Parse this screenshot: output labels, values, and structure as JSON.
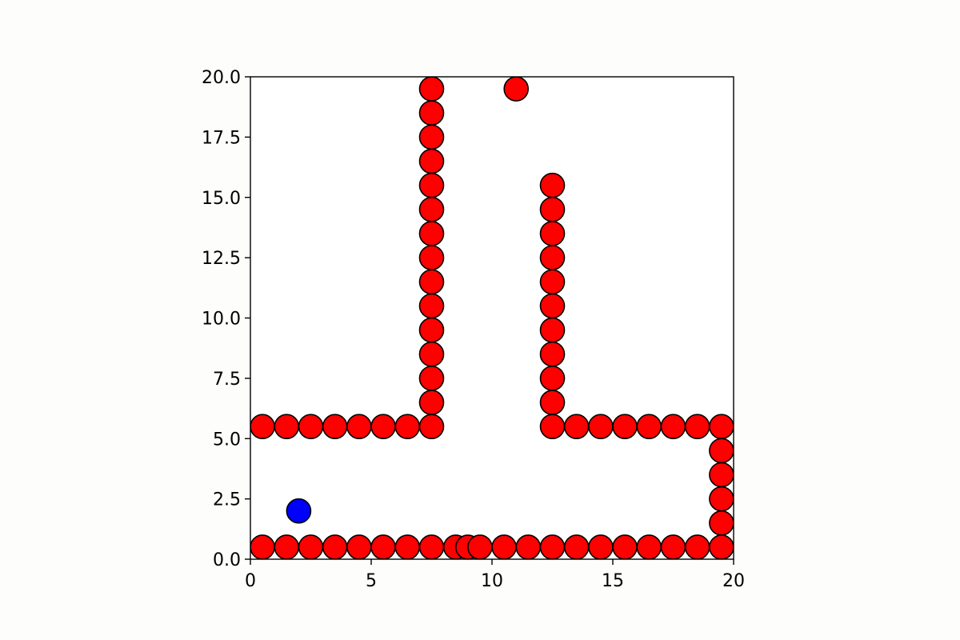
{
  "chart_data": {
    "type": "scatter",
    "title": "",
    "xlabel": "",
    "ylabel": "",
    "xlim": [
      0,
      20
    ],
    "ylim": [
      0,
      20
    ],
    "x_ticks": [
      "0",
      "5",
      "10",
      "15",
      "20"
    ],
    "y_ticks": [
      "0.0",
      "2.5",
      "5.0",
      "7.5",
      "10.0",
      "12.5",
      "15.0",
      "17.5",
      "20.0"
    ],
    "grid": false,
    "legend": "none",
    "series": [
      {
        "color": "#ff0000",
        "points": [
          [
            0.5,
            0.5
          ],
          [
            1.5,
            0.5
          ],
          [
            2.5,
            0.5
          ],
          [
            3.5,
            0.5
          ],
          [
            4.5,
            0.5
          ],
          [
            5.5,
            0.5
          ],
          [
            6.5,
            0.5
          ],
          [
            7.5,
            0.5
          ],
          [
            8.5,
            0.5
          ],
          [
            9.0,
            0.5
          ],
          [
            9.5,
            0.5
          ],
          [
            10.5,
            0.5
          ],
          [
            11.5,
            0.5
          ],
          [
            12.5,
            0.5
          ],
          [
            13.5,
            0.5
          ],
          [
            14.5,
            0.5
          ],
          [
            15.5,
            0.5
          ],
          [
            16.5,
            0.5
          ],
          [
            17.5,
            0.5
          ],
          [
            18.5,
            0.5
          ],
          [
            19.5,
            0.5
          ],
          [
            19.5,
            1.5
          ],
          [
            19.5,
            2.5
          ],
          [
            19.5,
            3.5
          ],
          [
            19.5,
            4.5
          ],
          [
            19.5,
            5.5
          ],
          [
            0.5,
            5.5
          ],
          [
            1.5,
            5.5
          ],
          [
            2.5,
            5.5
          ],
          [
            3.5,
            5.5
          ],
          [
            4.5,
            5.5
          ],
          [
            5.5,
            5.5
          ],
          [
            6.5,
            5.5
          ],
          [
            7.5,
            5.5
          ],
          [
            7.5,
            6.5
          ],
          [
            7.5,
            7.5
          ],
          [
            7.5,
            8.5
          ],
          [
            7.5,
            9.5
          ],
          [
            7.5,
            10.5
          ],
          [
            7.5,
            11.5
          ],
          [
            7.5,
            12.5
          ],
          [
            7.5,
            13.5
          ],
          [
            7.5,
            14.5
          ],
          [
            7.5,
            15.5
          ],
          [
            7.5,
            16.5
          ],
          [
            7.5,
            17.5
          ],
          [
            7.5,
            18.5
          ],
          [
            7.5,
            19.5
          ],
          [
            12.5,
            5.5
          ],
          [
            13.5,
            5.5
          ],
          [
            14.5,
            5.5
          ],
          [
            15.5,
            5.5
          ],
          [
            16.5,
            5.5
          ],
          [
            17.5,
            5.5
          ],
          [
            18.5,
            5.5
          ],
          [
            12.5,
            6.5
          ],
          [
            12.5,
            7.5
          ],
          [
            12.5,
            8.5
          ],
          [
            12.5,
            9.5
          ],
          [
            12.5,
            10.5
          ],
          [
            12.5,
            11.5
          ],
          [
            12.5,
            12.5
          ],
          [
            12.5,
            13.5
          ],
          [
            12.5,
            14.5
          ],
          [
            12.5,
            15.5
          ],
          [
            11.0,
            19.5
          ]
        ]
      },
      {
        "color": "#0000ff",
        "points": [
          [
            2.0,
            2.0
          ]
        ]
      }
    ]
  }
}
